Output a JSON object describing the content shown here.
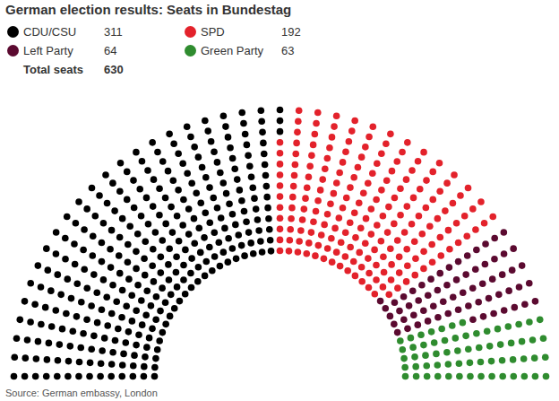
{
  "chart_data": {
    "type": "parliament",
    "title": "German election results: Seats in Bundestag",
    "categories": [
      "CDU/CSU",
      "SPD",
      "Left Party",
      "Green Party"
    ],
    "values": [
      311,
      192,
      64,
      63
    ],
    "colors": [
      "#000000",
      "#e3222b",
      "#5b0a30",
      "#2f8c2f"
    ],
    "total_label": "Total seats",
    "total": 630,
    "source": "Source: German embassy, London",
    "legend": "top-left"
  }
}
